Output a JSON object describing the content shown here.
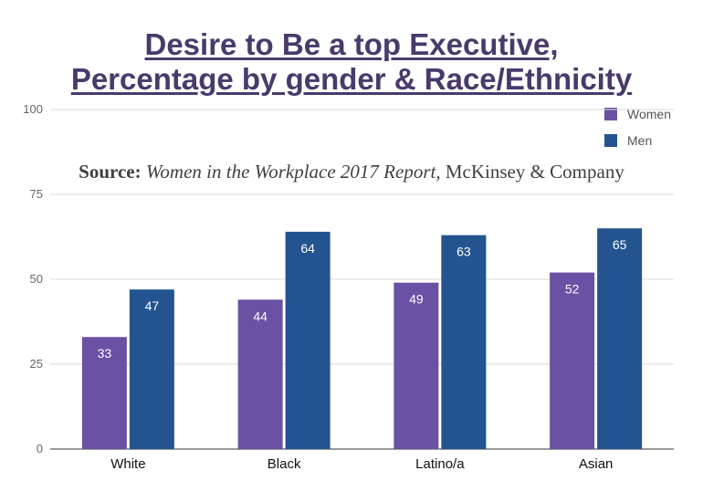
{
  "title_line1": "Desire to Be a top Executive,",
  "title_line2": "Percentage by gender & Race/Ethnicity",
  "source": {
    "label": "Source:",
    "report": "Women in the Workplace 2017 Report,",
    "company": "McKinsey & Company"
  },
  "legend": [
    {
      "name": "Women",
      "color": "#6a51a3"
    },
    {
      "name": "Men",
      "color": "#23548f"
    }
  ],
  "chart_data": {
    "type": "bar",
    "categories": [
      "White",
      "Black",
      "Latino/a",
      "Asian"
    ],
    "series": [
      {
        "name": "Women",
        "values": [
          33,
          44,
          49,
          52
        ],
        "color": "#6a51a3"
      },
      {
        "name": "Men",
        "values": [
          47,
          64,
          63,
          65
        ],
        "color": "#23548f"
      }
    ],
    "ylim": [
      0,
      100
    ],
    "yticks": [
      0,
      25,
      50,
      75,
      100
    ],
    "grid": true,
    "legend_position": "top-right",
    "data_labels": true
  }
}
